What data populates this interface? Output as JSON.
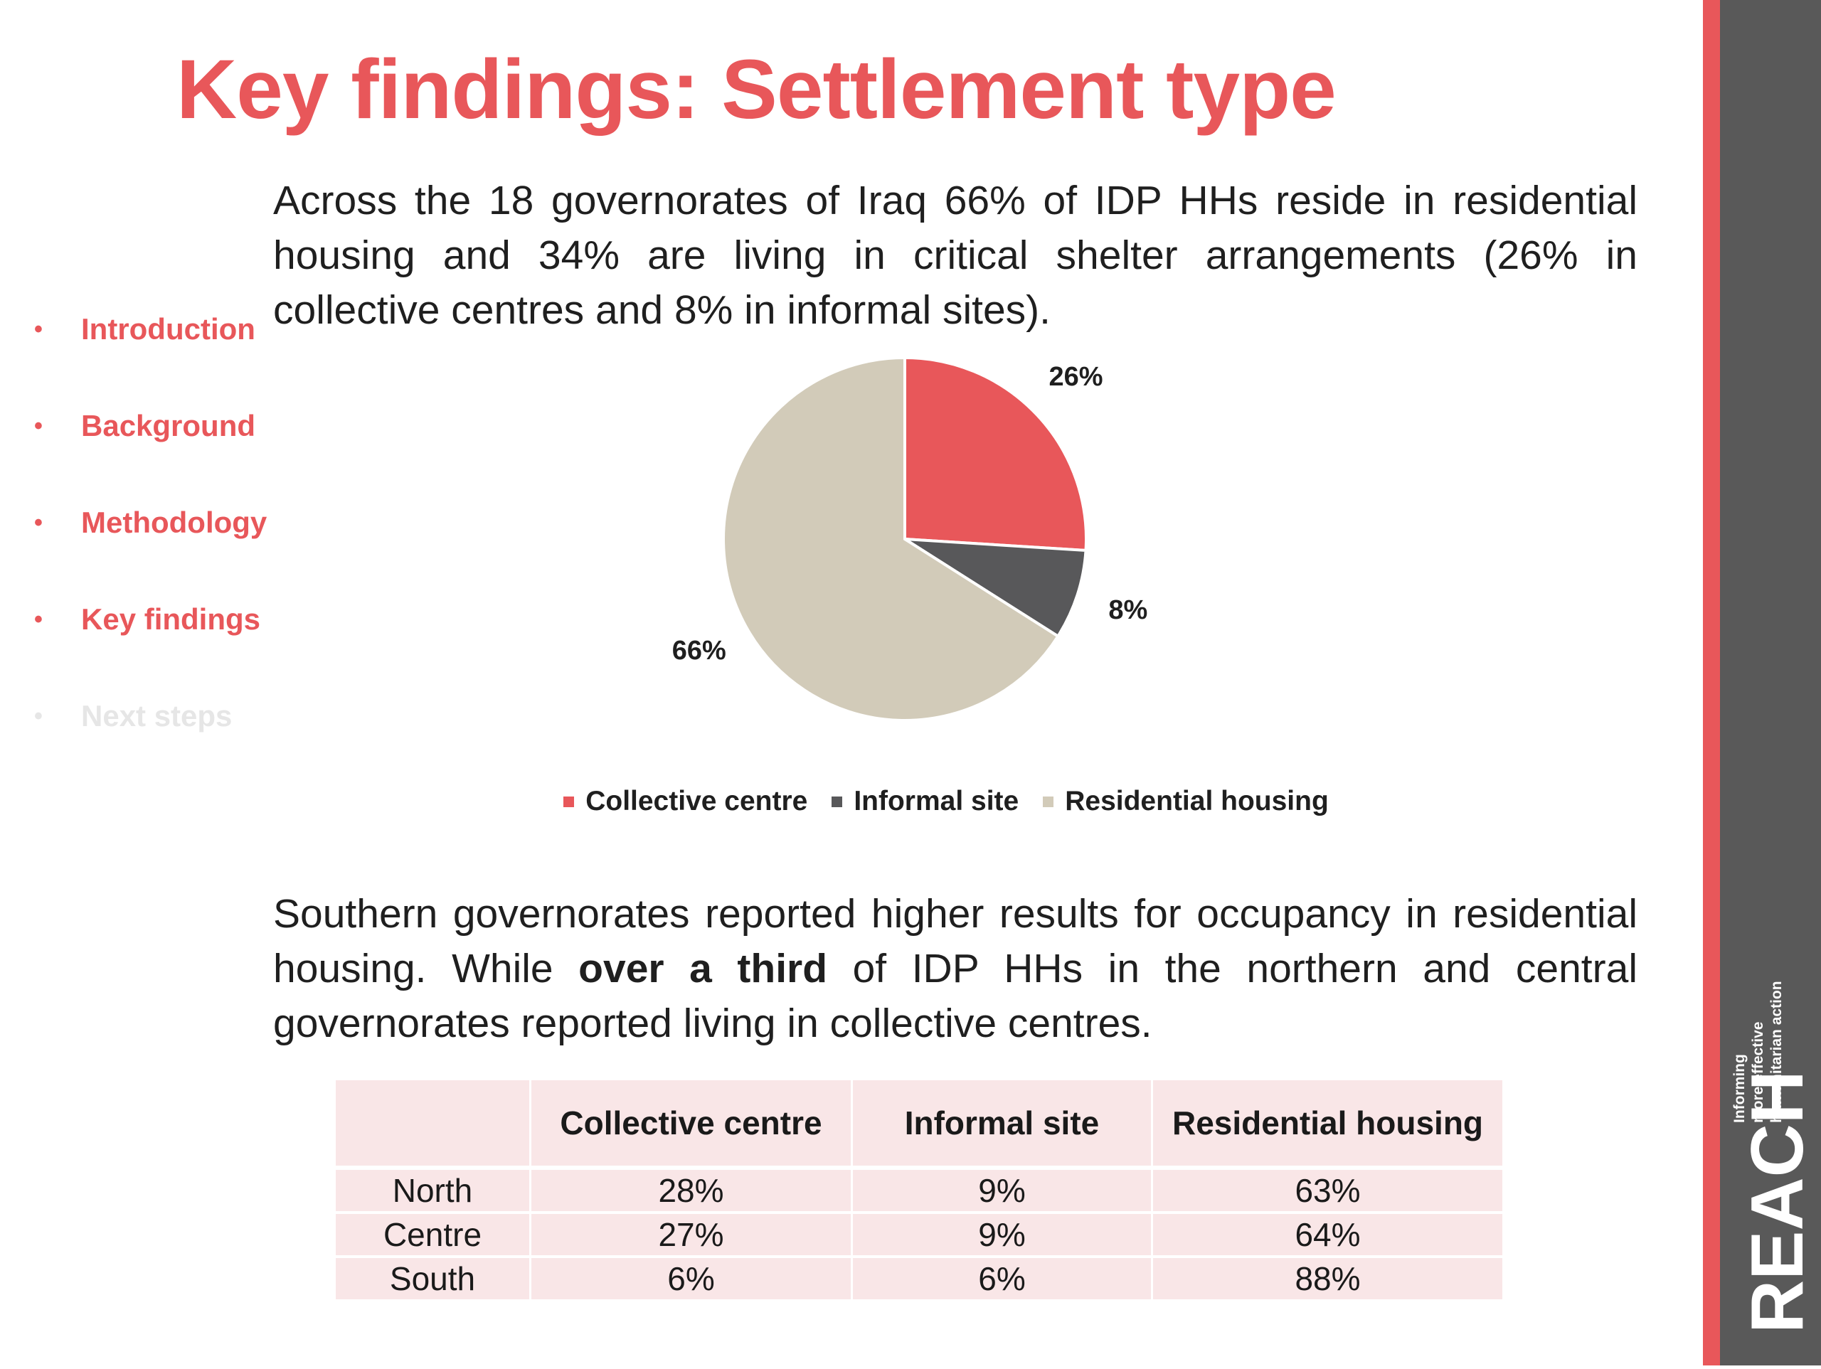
{
  "title": "Key findings: Settlement type",
  "nav": [
    {
      "label": "Introduction",
      "active": true
    },
    {
      "label": "Background",
      "active": true
    },
    {
      "label": "Methodology",
      "active": true
    },
    {
      "label": "Key findings",
      "active": true
    },
    {
      "label": "Next steps",
      "active": false
    }
  ],
  "paragraph1": "Across the 18 governorates of Iraq 66% of IDP HHs reside in residential housing and 34% are living in critical shelter arrangements (26%  in collective centres and 8% in informal sites).",
  "paragraph2": {
    "part1": "Southern governorates reported higher results for occupancy in residential housing. While ",
    "bold": "over a third",
    "part2": " of IDP HHs in the northern and central governorates reported living in collective centres."
  },
  "chart_data": {
    "type": "pie",
    "title": "",
    "slices": [
      {
        "label": "Collective centre",
        "value": 26,
        "display": "26%",
        "color": "#e8575a"
      },
      {
        "label": "Informal site",
        "value": 8,
        "display": "8%",
        "color": "#58585a"
      },
      {
        "label": "Residential housing",
        "value": 66,
        "display": "66%",
        "color": "#d2cbb9"
      }
    ],
    "legend_position": "bottom"
  },
  "table": {
    "headers": [
      "",
      "Collective centre",
      "Informal site",
      "Residential housing"
    ],
    "rows": [
      [
        "North",
        "28%",
        "9%",
        "63%"
      ],
      [
        "Centre",
        "27%",
        "9%",
        "64%"
      ],
      [
        "South",
        "6%",
        "6%",
        "88%"
      ]
    ]
  },
  "logo": {
    "name": "REACH",
    "tagline": [
      "Informing",
      "more effective",
      "humanitarian action"
    ]
  },
  "colors": {
    "accent": "#e8575a",
    "sidebar_gray": "#595959",
    "table_fill": "#f9e6e7",
    "nav_inactive": "#e6e6e6"
  }
}
